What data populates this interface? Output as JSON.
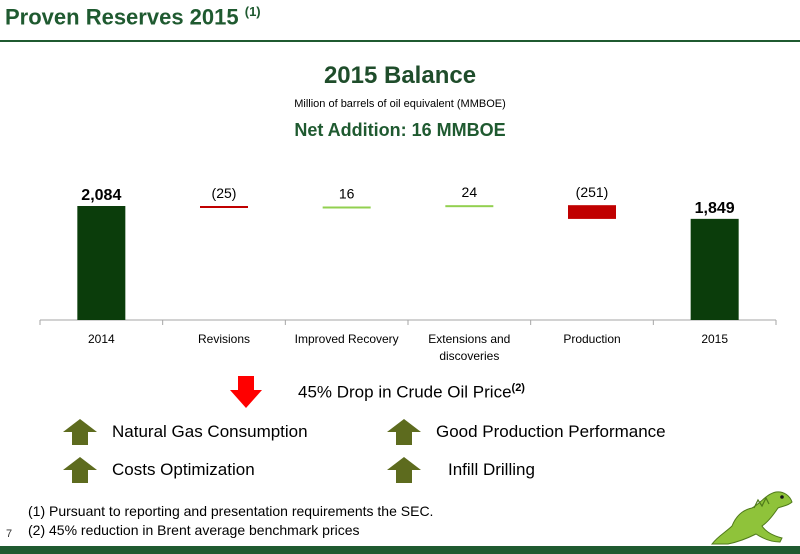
{
  "header": {
    "title": "Proven Reserves 2015",
    "title_note": "(1)"
  },
  "balance": {
    "title": "2015 Balance",
    "subtitle": "Million of barrels of oil equivalent (MMBOE)",
    "net_addition": "Net Addition: 16 MMBOE"
  },
  "chart_data": {
    "type": "bar",
    "subtype": "waterfall",
    "categories": [
      "2014",
      "Revisions",
      "Improved Recovery",
      "Extensions and discoveries",
      "Production",
      "2015"
    ],
    "category_lines": [
      [
        "2014"
      ],
      [
        "Revisions"
      ],
      [
        "Improved Recovery"
      ],
      [
        "Extensions and",
        "discoveries"
      ],
      [
        "Production"
      ],
      [
        "2015"
      ]
    ],
    "values": [
      2084,
      -25,
      16,
      24,
      -251,
      1849
    ],
    "data_labels": [
      "2,084",
      "(25)",
      "16",
      "24",
      "(251)",
      "1,849"
    ],
    "bar_kinds": [
      "total",
      "decrease",
      "increase",
      "increase",
      "decrease",
      "total"
    ],
    "colors": {
      "total": "#0b3d0b",
      "decrease": "#c00000",
      "increase": "#92d050",
      "axis": "#a6a6a6"
    }
  },
  "price_drop": {
    "text": "45% Drop in Crude Oil Price",
    "note": "(2)"
  },
  "factors": {
    "left": [
      "Natural Gas Consumption",
      "Costs Optimization"
    ],
    "right": [
      "Good Production Performance",
      "Infill Drilling"
    ]
  },
  "footnotes": [
    "(1) Pursuant to reporting and presentation requirements the SEC.",
    "(2) 45% reduction in Brent average benchmark prices"
  ],
  "page_number": "7",
  "icons": {
    "down_arrow": "red-down-arrow-icon",
    "up_arrow": "olive-up-arrow-icon",
    "logo": "iguana-logo-icon"
  }
}
